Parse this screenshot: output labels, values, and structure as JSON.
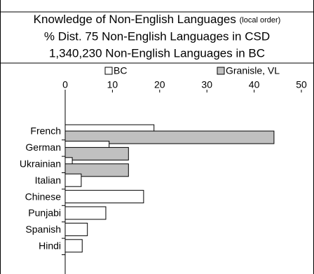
{
  "chart_data": {
    "type": "bar",
    "orientation": "horizontal",
    "title": "Knowledge of Non-English Languages",
    "title_note": "(local order)",
    "subtitle": "% Dist. 75 Non-English Languages in CSD",
    "subtitle2": "1,340,230 Non-English Languages in BC",
    "categories": [
      "French",
      "German",
      "Ukrainian",
      "Italian",
      "Chinese",
      "Punjabi",
      "Spanish",
      "Hindi"
    ],
    "series": [
      {
        "name": "BC",
        "color": "#ffffff",
        "values": [
          18.8,
          9.3,
          1.5,
          3.4,
          16.6,
          8.6,
          4.7,
          3.6
        ]
      },
      {
        "name": "Granisle, VL",
        "color": "#c0c0c0",
        "values": [
          44.2,
          13.4,
          13.4,
          0,
          0,
          0,
          0,
          0
        ]
      }
    ],
    "xlim": [
      0,
      50
    ],
    "xticks": [
      0,
      10,
      20,
      30,
      40,
      50
    ],
    "legend": "top"
  }
}
